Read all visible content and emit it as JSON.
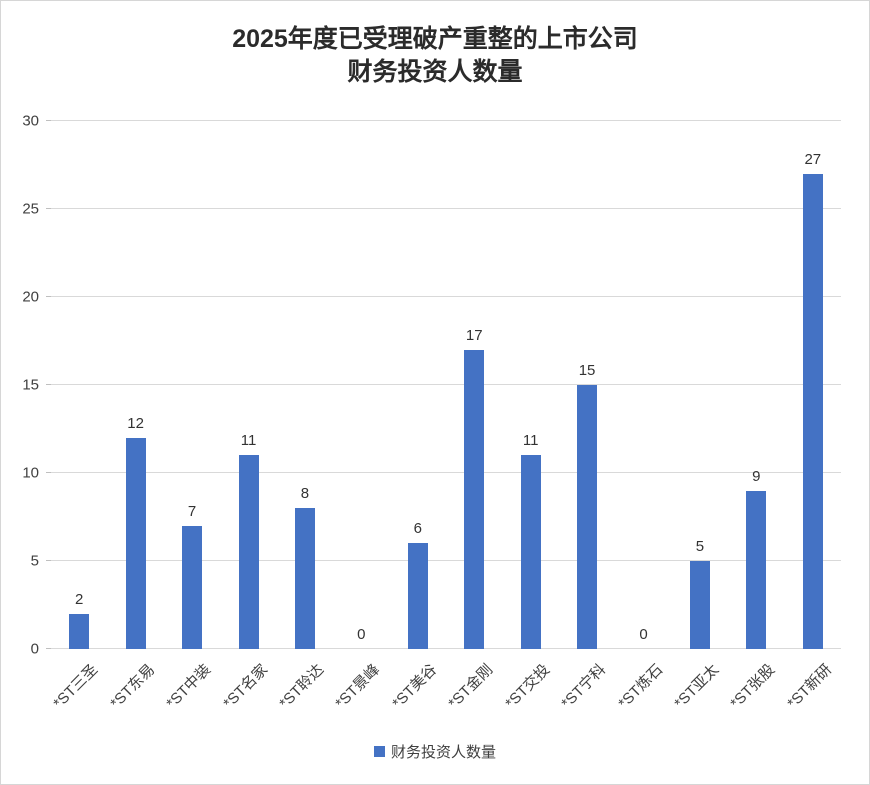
{
  "chart_data": {
    "type": "bar",
    "title_line1": "2025年度已受理破产重整的上市公司",
    "title_line2": "财务投资人数量",
    "categories": [
      "*ST三圣",
      "*ST东易",
      "*ST中装",
      "*ST名家",
      "*ST聆达",
      "*ST景峰",
      "*ST美谷",
      "*ST金刚",
      "*ST交投",
      "*ST宁科",
      "*ST炼石",
      "*ST亚太",
      "*ST张股",
      "*ST新研"
    ],
    "values": [
      2,
      12,
      7,
      11,
      8,
      0,
      6,
      17,
      11,
      15,
      0,
      5,
      9,
      27
    ],
    "ylim": [
      0,
      30
    ],
    "yticks": [
      0,
      5,
      10,
      15,
      20,
      25,
      30
    ],
    "legend": "财务投资人数量",
    "bar_color": "#4472C4",
    "grid": true,
    "legend_position": "bottom"
  }
}
